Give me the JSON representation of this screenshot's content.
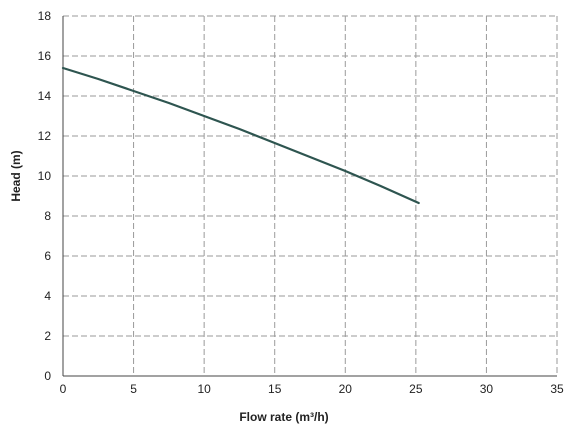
{
  "chart_data": {
    "type": "line",
    "title": "",
    "xlabel": "Flow rate (m³/h)",
    "ylabel": "Head (m)",
    "xlim": [
      0,
      35
    ],
    "ylim": [
      0,
      18
    ],
    "x_ticks": [
      0,
      5,
      10,
      15,
      20,
      25,
      30,
      35
    ],
    "y_ticks": [
      0,
      2,
      4,
      6,
      8,
      10,
      12,
      14,
      16,
      18
    ],
    "grid": true,
    "grid_style": "dashed",
    "legend": "none",
    "series": [
      {
        "color": "#2e5550",
        "x": [
          0,
          2.5,
          5,
          7.5,
          10,
          12.5,
          15,
          17.5,
          20,
          22.5,
          25.2
        ],
        "y": [
          15.4,
          14.85,
          14.25,
          13.65,
          13.0,
          12.35,
          11.65,
          10.95,
          10.25,
          9.5,
          8.65
        ]
      }
    ]
  }
}
